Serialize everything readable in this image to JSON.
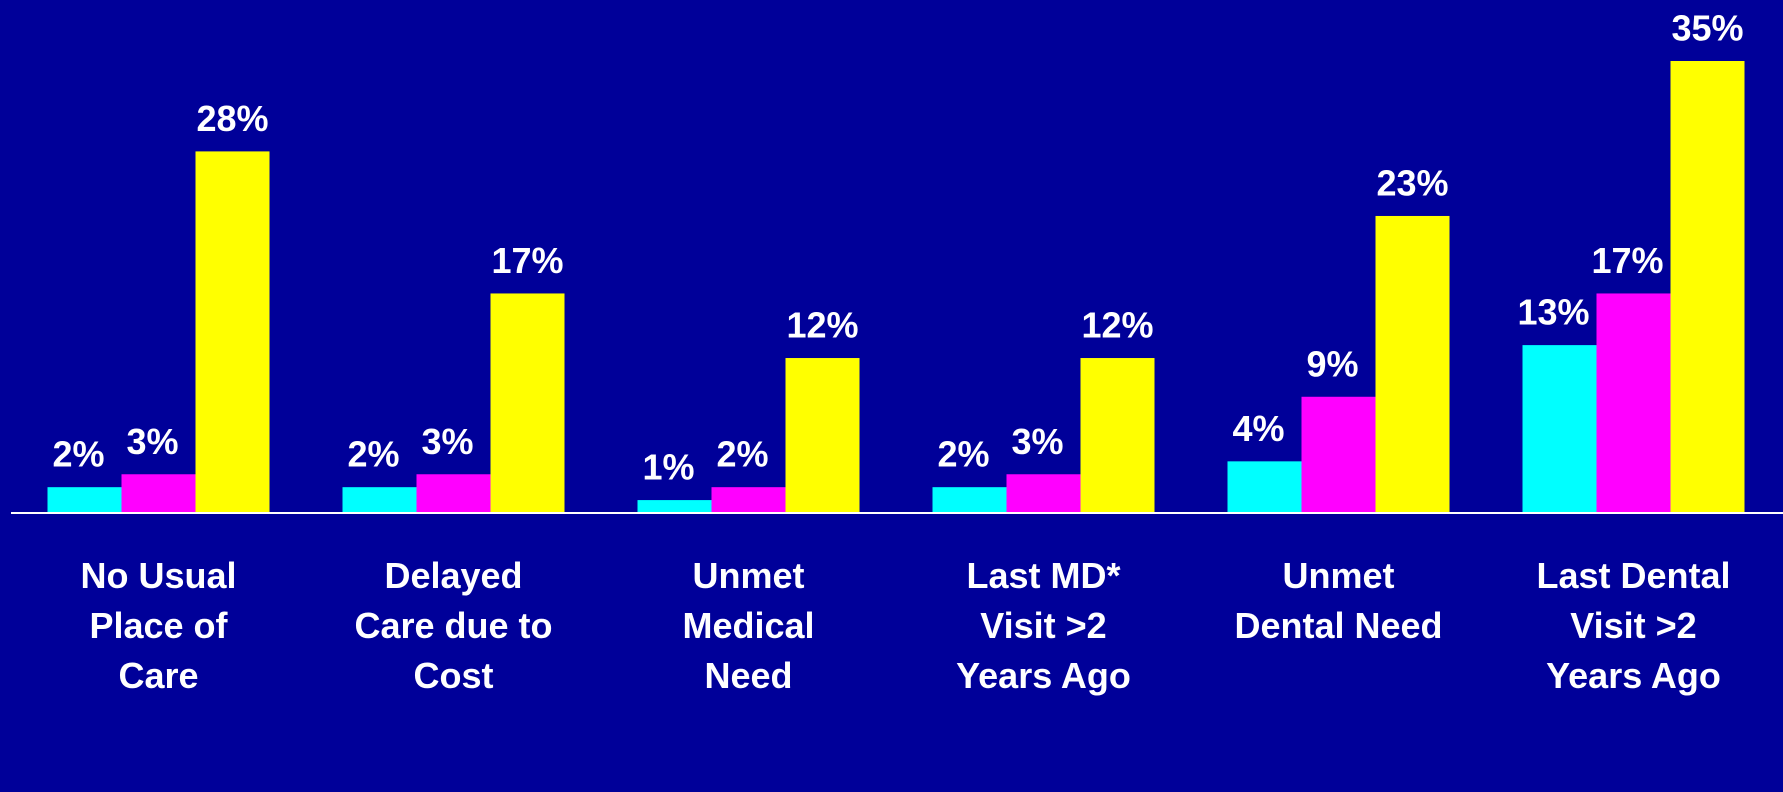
{
  "chart_data": {
    "type": "bar",
    "categories": [
      "No Usual\nPlace of\nCare",
      "Delayed\nCare due to\nCost",
      "Unmet\nMedical\nNeed",
      "Last MD*\nVisit >2\nYears Ago",
      "Unmet\nDental Need",
      "Last Dental\nVisit >2\nYears Ago"
    ],
    "series": [
      {
        "color": "#00ffff",
        "values": [
          2,
          2,
          1,
          2,
          4,
          13
        ],
        "value_labels": [
          "2%",
          "2%",
          "1%",
          "2%",
          "4%",
          "13%"
        ]
      },
      {
        "color": "#ff00ff",
        "values": [
          3,
          3,
          2,
          3,
          9,
          17
        ],
        "value_labels": [
          "3%",
          "3%",
          "2%",
          "3%",
          "9%",
          "17%"
        ]
      },
      {
        "color": "#ffff00",
        "values": [
          28,
          17,
          12,
          12,
          23,
          35
        ],
        "value_labels": [
          "28%",
          "17%",
          "12%",
          "12%",
          "23%",
          "35%"
        ]
      }
    ],
    "ylim": [
      0,
      35
    ]
  }
}
